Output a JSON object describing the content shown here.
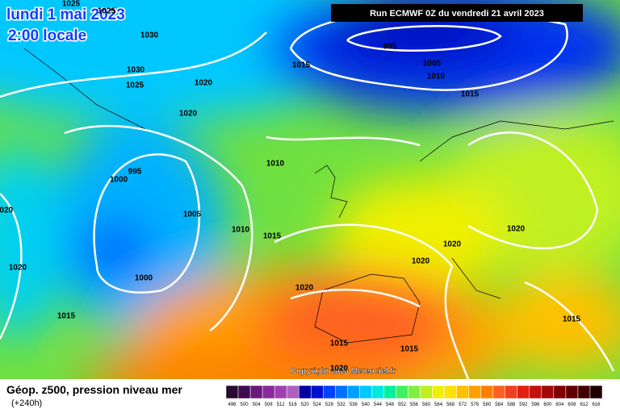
{
  "header": {
    "date": "lundi 1 mai 2023",
    "time": "2:00 locale",
    "run": "Run ECMWF 0Z du vendredi 21 avril 2023"
  },
  "map": {
    "isobar_labels": [
      1025,
      1025,
      1030,
      1030,
      1025,
      1020,
      1020,
      995,
      1000,
      1005,
      1010,
      1015,
      1010,
      1000,
      1020,
      1020,
      1015,
      1015,
      995,
      1005,
      1010,
      1015,
      1020,
      1020,
      1020,
      1020,
      1015,
      1015,
      1015,
      1020
    ],
    "copyright": "Copyright 2023 Meteociel.fr"
  },
  "footer": {
    "title": "Géop. z500, pression niveau mer",
    "lead": "(+240h)"
  },
  "scale": {
    "labels": [
      496,
      500,
      504,
      508,
      512,
      516,
      520,
      524,
      528,
      532,
      536,
      540,
      544,
      548,
      552,
      556,
      560,
      564,
      568,
      572,
      576,
      580,
      584,
      588,
      592,
      596,
      600,
      604,
      608,
      612,
      616
    ],
    "colors": [
      "#2a0a30",
      "#400a50",
      "#6a1a7a",
      "#8a2a9a",
      "#a040b0",
      "#b060c0",
      "#0000a0",
      "#0010d0",
      "#0040ff",
      "#0070ff",
      "#00a0ff",
      "#00c8ff",
      "#00e8e0",
      "#00f0a0",
      "#40f060",
      "#80f040",
      "#c0f020",
      "#f0f000",
      "#ffe000",
      "#ffc000",
      "#ffa000",
      "#ff8000",
      "#ff6020",
      "#f04020",
      "#e02010",
      "#c01010",
      "#a00808",
      "#800000",
      "#600000",
      "#400000",
      "#200000"
    ]
  }
}
